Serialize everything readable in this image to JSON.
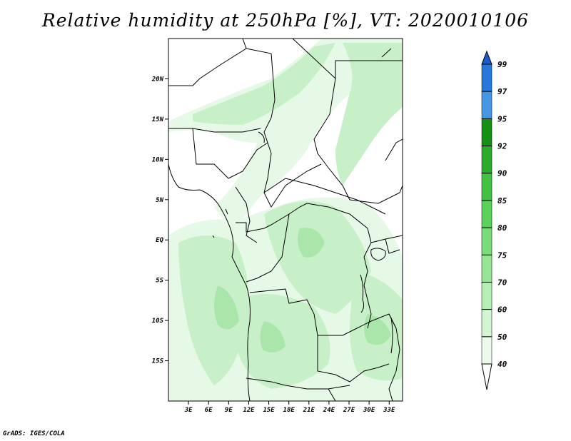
{
  "title": "Relative humidity at 250hPa [%], VT: 2020010106",
  "footer": "GrADS: IGES/COLA",
  "map": {
    "lon_range": [
      0,
      35
    ],
    "lat_range": [
      -20,
      25
    ],
    "lat_ticks": [
      {
        "value": 20,
        "label": "20N"
      },
      {
        "value": 15,
        "label": "15N"
      },
      {
        "value": 10,
        "label": "10N"
      },
      {
        "value": 5,
        "label": "5N"
      },
      {
        "value": 0,
        "label": "EQ"
      },
      {
        "value": -5,
        "label": "5S"
      },
      {
        "value": -10,
        "label": "10S"
      },
      {
        "value": -15,
        "label": "15S"
      }
    ],
    "lon_ticks": [
      {
        "value": 3,
        "label": "3E"
      },
      {
        "value": 6,
        "label": "6E"
      },
      {
        "value": 9,
        "label": "9E"
      },
      {
        "value": 12,
        "label": "12E"
      },
      {
        "value": 15,
        "label": "15E"
      },
      {
        "value": 18,
        "label": "18E"
      },
      {
        "value": 21,
        "label": "21E"
      },
      {
        "value": 24,
        "label": "24E"
      },
      {
        "value": 27,
        "label": "27E"
      },
      {
        "value": 30,
        "label": "30E"
      },
      {
        "value": 33,
        "label": "33E"
      }
    ]
  },
  "colorbar": {
    "levels": [
      "40",
      "50",
      "60",
      "70",
      "75",
      "80",
      "85",
      "90",
      "92",
      "95",
      "97",
      "99"
    ],
    "colors": [
      "#ebfaeb",
      "#d2f5d2",
      "#b4efb4",
      "#96e696",
      "#78dc78",
      "#5ad25a",
      "#41c341",
      "#2aab2a",
      "#149114",
      "#4696e6",
      "#2878dc",
      "#1e5ac8"
    ]
  },
  "colors": {
    "light_green": "#e6f9e6",
    "mid_green": "#c8f0c8",
    "green": "#aae6aa",
    "border": "#000000"
  }
}
